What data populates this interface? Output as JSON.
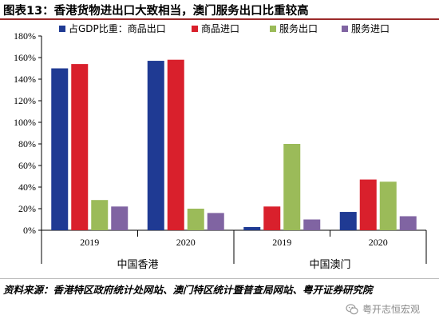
{
  "title": "图表13：香港货物进出口大致相当，澳门服务出口比重较高",
  "source": "资料来源：香港特区政府统计处网站、澳门特区统计暨普查局网站、粤开证券研究院",
  "watermark": "粤开志恒宏观",
  "colors": {
    "accent_rule": "#9b2a2a",
    "series": [
      "#1f3a93",
      "#d9202c",
      "#9bbb59",
      "#8064a2"
    ]
  },
  "chart_data": {
    "type": "bar",
    "title": "",
    "xlabel": "",
    "ylabel": "",
    "ylim": [
      0,
      180
    ],
    "yticks": [
      0,
      20,
      40,
      60,
      80,
      100,
      120,
      140,
      160,
      180
    ],
    "ytick_labels": [
      "0%",
      "20%",
      "40%",
      "60%",
      "80%",
      "100%",
      "120%",
      "140%",
      "160%",
      "180%"
    ],
    "grid": false,
    "legend_position": "top",
    "categories": [
      "2019",
      "2020",
      "2019",
      "2020"
    ],
    "groups": [
      {
        "label": "中国香港",
        "categories": [
          "2019",
          "2020"
        ]
      },
      {
        "label": "中国澳门",
        "categories": [
          "2019",
          "2020"
        ]
      }
    ],
    "series": [
      {
        "name": "占GDP比重：商品出口",
        "values": [
          150,
          157,
          3,
          17
        ]
      },
      {
        "name": "商品进口",
        "values": [
          154,
          158,
          22,
          47
        ]
      },
      {
        "name": "服务出口",
        "values": [
          28,
          20,
          80,
          45
        ]
      },
      {
        "name": "服务进口",
        "values": [
          22,
          16,
          10,
          13
        ]
      }
    ]
  }
}
